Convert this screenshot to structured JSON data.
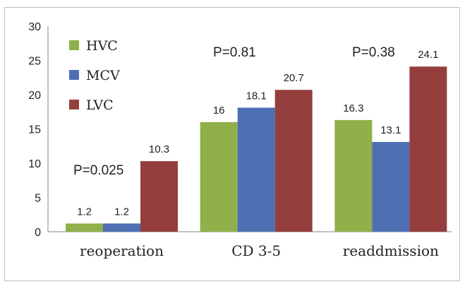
{
  "chart_data": {
    "type": "bar",
    "categories": [
      "reoperation",
      "CD 3-5",
      "readdmission"
    ],
    "series": [
      {
        "name": "HVC",
        "color": "#8fb04a",
        "values": [
          1.2,
          16,
          16.3
        ]
      },
      {
        "name": "MCV",
        "color": "#4f6fb3",
        "values": [
          1.2,
          18.1,
          13.1
        ]
      },
      {
        "name": "LVC",
        "color": "#943f3d",
        "values": [
          10.3,
          20.7,
          24.1
        ]
      }
    ],
    "data_labels": [
      [
        "1.2",
        "16",
        "16.3"
      ],
      [
        "1.2",
        "18.1",
        "13.1"
      ],
      [
        "10.3",
        "20.7",
        "24.1"
      ]
    ],
    "annotations": [
      "P=0.025",
      "P=0.81",
      "P=0.38"
    ],
    "yticks": [
      "0",
      "5",
      "10",
      "15",
      "20",
      "25",
      "30"
    ],
    "ylim": [
      0,
      30
    ],
    "grid": false,
    "legend_position": "top-left"
  }
}
